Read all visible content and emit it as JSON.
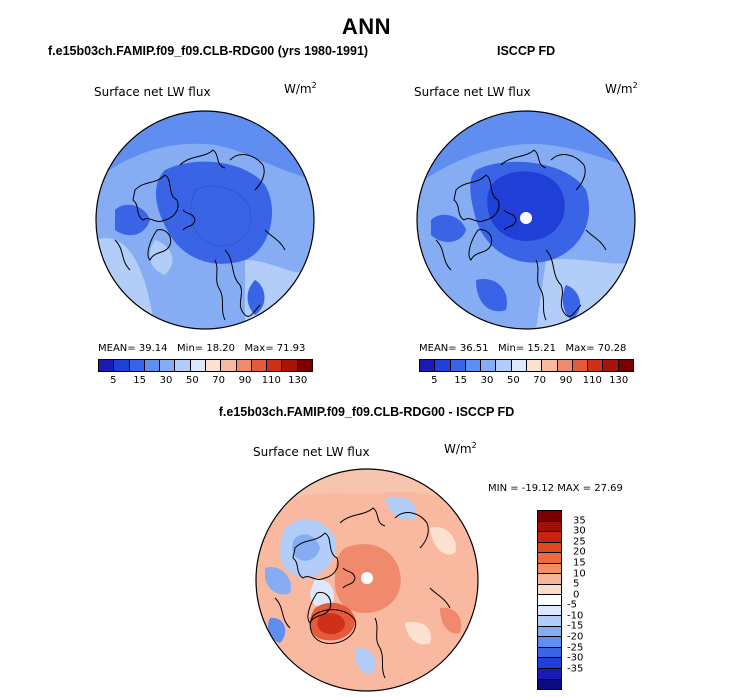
{
  "title": "ANN",
  "panels": {
    "left": {
      "title": "f.e15b03ch.FAMIP.f09_f09.CLB-RDG00 (yrs 1980-1991)",
      "variable": "Surface net LW flux",
      "units_base": "W/m",
      "units_exp": "2",
      "mean_label": "MEAN=",
      "mean_value": "39.14",
      "min_label": "Min=",
      "min_value": "18.20",
      "max_label": "Max=",
      "max_value": "71.93"
    },
    "right": {
      "title": "ISCCP FD",
      "variable": "Surface net LW flux",
      "units_base": "W/m",
      "units_exp": "2",
      "mean_label": "MEAN=",
      "mean_value": "36.51",
      "min_label": "Min=",
      "min_value": "15.21",
      "max_label": "Max=",
      "max_value": "70.28"
    },
    "diff": {
      "title": "f.e15b03ch.FAMIP.f09_f09.CLB-RDG00 - ISCCP FD",
      "variable": "Surface net LW flux",
      "units_base": "W/m",
      "units_exp": "2",
      "minmax_text": "MIN = -19.12 MAX =  27.69"
    }
  },
  "colorbar_abs": {
    "colors": [
      "#1a1ab4",
      "#1f3fd6",
      "#3a64e6",
      "#5f8ef0",
      "#86adf4",
      "#b1cdf8",
      "#dce8fb",
      "#fde2d2",
      "#f8b9a0",
      "#f08a6c",
      "#e65a3c",
      "#cf3018",
      "#a81408",
      "#7a0000"
    ],
    "ticks": [
      "5",
      "15",
      "30",
      "50",
      "70",
      "90",
      "110",
      "130"
    ]
  },
  "colorbar_diff": {
    "colors": [
      "#7a0000",
      "#a01008",
      "#c82410",
      "#e04820",
      "#ec6a40",
      "#f28e66",
      "#f7b498",
      "#fcdcc8",
      "#ffffff",
      "#dce8fb",
      "#b1cdf8",
      "#86adf4",
      "#5f8ef0",
      "#3a64e6",
      "#1f3fd6",
      "#1a1ab4",
      "#0b0b80"
    ],
    "ticks": [
      "35",
      "30",
      "25",
      "20",
      "15",
      "10",
      "5",
      "0",
      "-5",
      "-10",
      "-15",
      "-20",
      "-25",
      "-30",
      "-35"
    ]
  }
}
